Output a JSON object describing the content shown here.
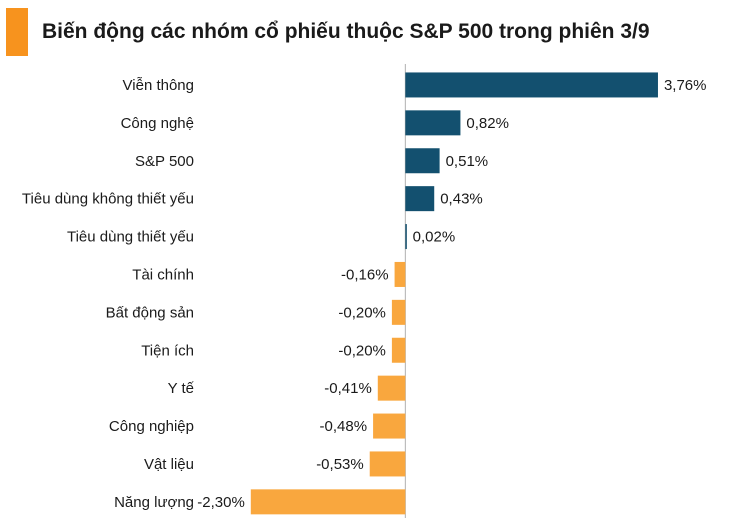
{
  "header": {
    "title": "Biến động các nhóm cổ phiếu thuộc S&P 500 trong phiên 3/9"
  },
  "colors": {
    "positive": "#13506f",
    "negative": "#f9a73e",
    "accent": "#f7931e",
    "axis": "#b0b0b0",
    "text": "#1a1a1a"
  },
  "chart_data": {
    "type": "bar",
    "orientation": "horizontal",
    "title": "Biến động các nhóm cổ phiếu thuộc S&P 500 trong phiên 3/9",
    "categories": [
      "Viễn thông",
      "Công nghệ",
      "S&P 500",
      "Tiêu dùng không thiết yếu",
      "Tiêu dùng thiết yếu",
      "Tài chính",
      "Bất động sản",
      "Tiện ích",
      "Y tế",
      "Công nghiệp",
      "Vật liệu",
      "Năng lượng"
    ],
    "values": [
      3.76,
      0.82,
      0.51,
      0.43,
      0.02,
      -0.16,
      -0.2,
      -0.2,
      -0.41,
      -0.48,
      -0.53,
      -2.3
    ],
    "value_labels": [
      "3,76%",
      "0,82%",
      "0,51%",
      "0,43%",
      "0,02%",
      "-0,16%",
      "-0,20%",
      "-0,20%",
      "-0,41%",
      "-0,48%",
      "-0,53%",
      "-2,30%"
    ],
    "xlim": [
      -2.55,
      3.82
    ],
    "unit": "%",
    "grid": false,
    "legend": "none"
  }
}
